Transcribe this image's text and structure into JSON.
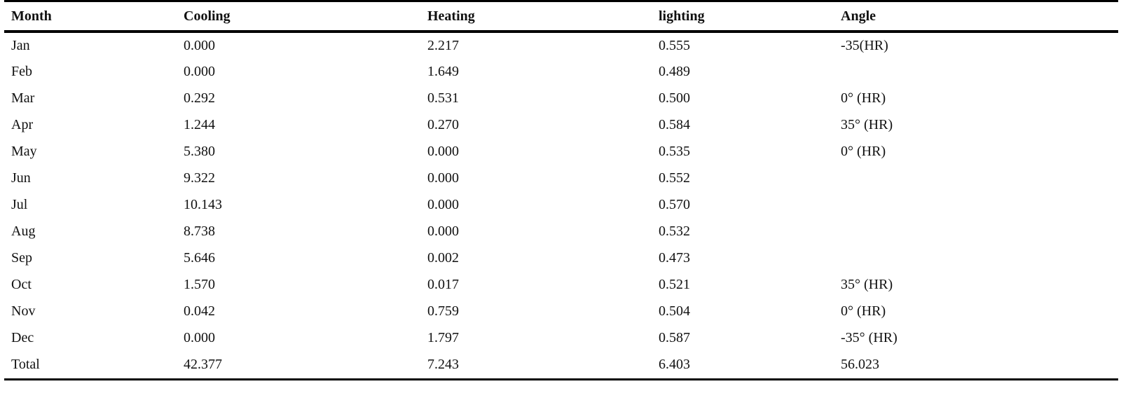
{
  "table": {
    "headers": [
      "Month",
      "Cooling",
      "Heating",
      "lighting",
      "Angle"
    ],
    "rows": [
      [
        "Jan",
        "0.000",
        "2.217",
        "0.555",
        "-35(HR)"
      ],
      [
        "Feb",
        "0.000",
        "1.649",
        "0.489",
        ""
      ],
      [
        "Mar",
        "0.292",
        "0.531",
        "0.500",
        "0° (HR)"
      ],
      [
        "Apr",
        "1.244",
        "0.270",
        "0.584",
        "35° (HR)"
      ],
      [
        "May",
        "5.380",
        "0.000",
        "0.535",
        "0° (HR)"
      ],
      [
        "Jun",
        "9.322",
        "0.000",
        "0.552",
        ""
      ],
      [
        "Jul",
        "10.143",
        "0.000",
        "0.570",
        ""
      ],
      [
        "Aug",
        "8.738",
        "0.000",
        "0.532",
        ""
      ],
      [
        "Sep",
        "5.646",
        "0.002",
        "0.473",
        ""
      ],
      [
        "Oct",
        "1.570",
        "0.017",
        "0.521",
        "35° (HR)"
      ],
      [
        "Nov",
        "0.042",
        "0.759",
        "0.504",
        "0° (HR)"
      ],
      [
        "Dec",
        "0.000",
        "1.797",
        "0.587",
        "-35° (HR)"
      ],
      [
        "Total",
        "42.377",
        "7.243",
        "6.403",
        "56.023"
      ]
    ]
  }
}
